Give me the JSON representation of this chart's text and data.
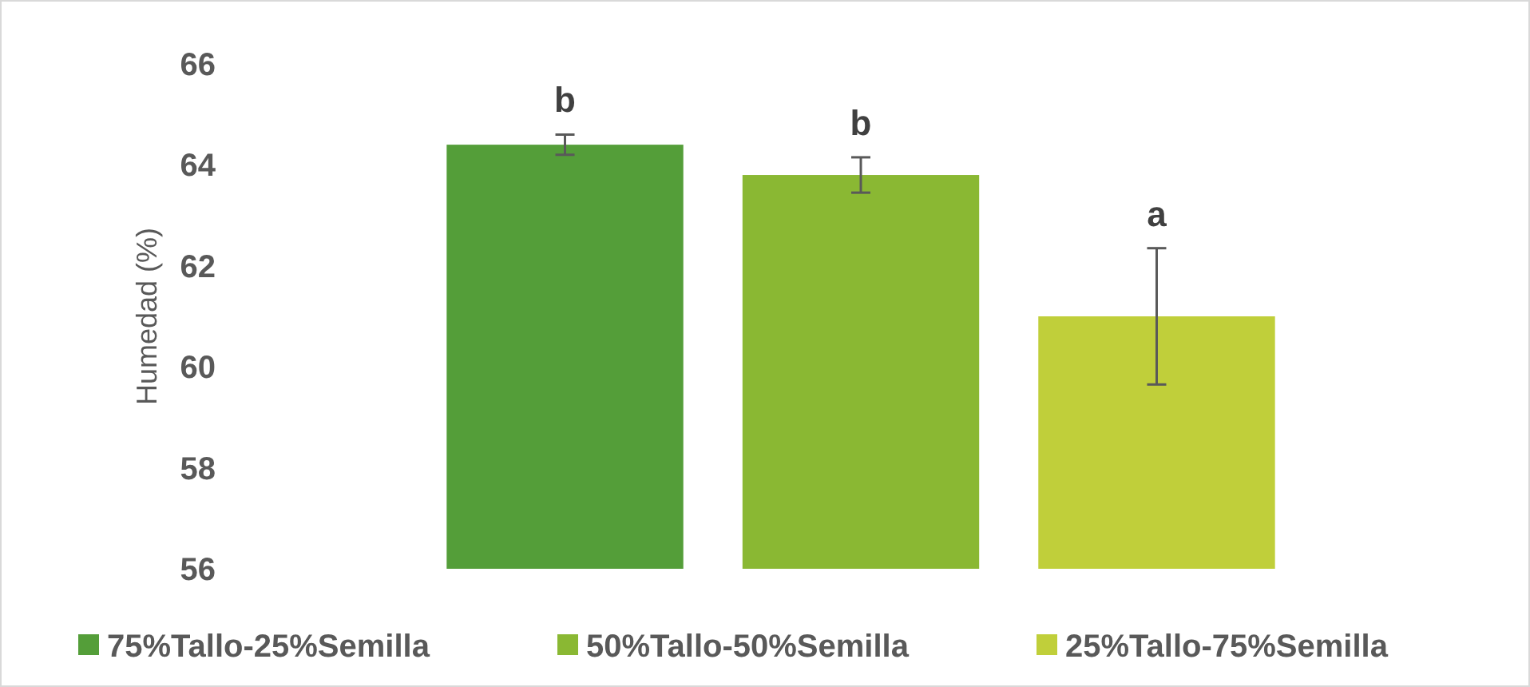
{
  "chart_data": {
    "type": "bar",
    "ylabel": "Humedad (%)",
    "categories": [
      null
    ],
    "series": [
      {
        "name": "75%Tallo-25%Semilla",
        "color": "#549e39",
        "values": [
          64.4
        ],
        "errors": [
          0.2
        ]
      },
      {
        "name": "50%Tallo-50%Semilla",
        "color": "#8ab833",
        "values": [
          63.8
        ],
        "errors": [
          0.35
        ]
      },
      {
        "name": "25%Tallo-75%Semilla",
        "color": "#c0cf3a",
        "values": [
          61.0
        ],
        "errors": [
          1.35
        ]
      }
    ],
    "annotations": [
      "b",
      "b",
      "a"
    ],
    "ylim": [
      56,
      66
    ],
    "yticks": [
      56,
      58,
      60,
      62,
      64,
      66
    ],
    "legend": "bottom"
  }
}
